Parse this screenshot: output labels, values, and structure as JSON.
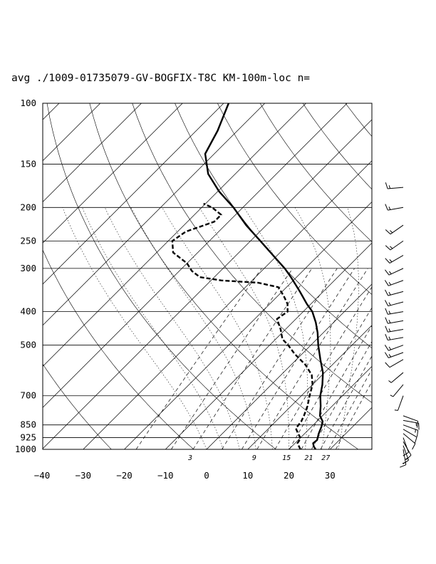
{
  "chart_data": {
    "type": "line",
    "title": "avg ./1009-01735079-GV-BOGFIX-T8C KM-100m-loc n=",
    "xlabel": "",
    "ylabel": "",
    "xlim": [
      -40,
      40
    ],
    "ylim": [
      1000,
      100
    ],
    "yscale": "log",
    "skew": "skew-T",
    "pressure_ticks": [
      {
        "p": 100,
        "label": "100"
      },
      {
        "p": 150,
        "label": "150"
      },
      {
        "p": 200,
        "label": "200"
      },
      {
        "p": 250,
        "label": "250"
      },
      {
        "p": 300,
        "label": "300"
      },
      {
        "p": 400,
        "label": "400"
      },
      {
        "p": 500,
        "label": "500"
      },
      {
        "p": 700,
        "label": "700"
      },
      {
        "p": 850,
        "label": "850"
      },
      {
        "p": 925,
        "label": "925"
      },
      {
        "p": 1000,
        "label": "1000"
      }
    ],
    "temperature_ticks": [
      {
        "t": -40,
        "label": "−40"
      },
      {
        "t": -30,
        "label": "−30"
      },
      {
        "t": -20,
        "label": "−20"
      },
      {
        "t": -10,
        "label": "−10"
      },
      {
        "t": 0,
        "label": "0"
      },
      {
        "t": 10,
        "label": "10"
      },
      {
        "t": 20,
        "label": "20"
      },
      {
        "t": 30,
        "label": "30"
      }
    ],
    "mixing_ratio_labels": [
      {
        "w": 3,
        "label": "3"
      },
      {
        "w": 9,
        "label": "9"
      },
      {
        "w": 15,
        "label": "15"
      },
      {
        "w": 21,
        "label": "21"
      },
      {
        "w": 27,
        "label": "27"
      }
    ],
    "grid": true,
    "series": [
      {
        "style": "solid",
        "points": [
          {
            "p": 1000,
            "t": 26.5
          },
          {
            "p": 980,
            "t": 25.3
          },
          {
            "p": 960,
            "t": 24.4
          },
          {
            "p": 940,
            "t": 24.6
          },
          {
            "p": 900,
            "t": 23.4
          },
          {
            "p": 860,
            "t": 22.4
          },
          {
            "p": 830,
            "t": 21.4
          },
          {
            "p": 800,
            "t": 19.4
          },
          {
            "p": 750,
            "t": 17.2
          },
          {
            "p": 700,
            "t": 14.6
          },
          {
            "p": 650,
            "t": 12.4
          },
          {
            "p": 600,
            "t": 9.6
          },
          {
            "p": 550,
            "t": 5.8
          },
          {
            "p": 500,
            "t": 1.8
          },
          {
            "p": 460,
            "t": -1.4
          },
          {
            "p": 430,
            "t": -4.3
          },
          {
            "p": 400,
            "t": -7.8
          },
          {
            "p": 380,
            "t": -11.0
          },
          {
            "p": 350,
            "t": -15.7
          },
          {
            "p": 320,
            "t": -21.0
          },
          {
            "p": 300,
            "t": -25.0
          },
          {
            "p": 280,
            "t": -29.8
          },
          {
            "p": 250,
            "t": -37.6
          },
          {
            "p": 225,
            "t": -44.9
          },
          {
            "p": 200,
            "t": -52.3
          },
          {
            "p": 180,
            "t": -59.6
          },
          {
            "p": 160,
            "t": -66.6
          },
          {
            "p": 140,
            "t": -72.2
          },
          {
            "p": 120,
            "t": -74.8
          },
          {
            "p": 100,
            "t": -78.8
          }
        ]
      },
      {
        "style": "dashed",
        "points": [
          {
            "p": 1000,
            "t": 22.8
          },
          {
            "p": 960,
            "t": 20.6
          },
          {
            "p": 930,
            "t": 20.2
          },
          {
            "p": 900,
            "t": 18.4
          },
          {
            "p": 870,
            "t": 16.6
          },
          {
            "p": 830,
            "t": 16.2
          },
          {
            "p": 800,
            "t": 15.5
          },
          {
            "p": 750,
            "t": 14.0
          },
          {
            "p": 700,
            "t": 12.0
          },
          {
            "p": 650,
            "t": 10.0
          },
          {
            "p": 610,
            "t": 7.5
          },
          {
            "p": 570,
            "t": 3.5
          },
          {
            "p": 530,
            "t": -1.8
          },
          {
            "p": 500,
            "t": -5.5
          },
          {
            "p": 480,
            "t": -8.4
          },
          {
            "p": 450,
            "t": -11.2
          },
          {
            "p": 420,
            "t": -14.6
          },
          {
            "p": 400,
            "t": -13.8
          },
          {
            "p": 380,
            "t": -15.7
          },
          {
            "p": 360,
            "t": -18.6
          },
          {
            "p": 340,
            "t": -22.0
          },
          {
            "p": 330,
            "t": -28.0
          },
          {
            "p": 325,
            "t": -37.5
          },
          {
            "p": 318,
            "t": -43.5
          },
          {
            "p": 305,
            "t": -47.0
          },
          {
            "p": 290,
            "t": -50.0
          },
          {
            "p": 270,
            "t": -56.0
          },
          {
            "p": 250,
            "t": -59.0
          },
          {
            "p": 235,
            "t": -58.0
          },
          {
            "p": 220,
            "t": -53.5
          },
          {
            "p": 210,
            "t": -53.5
          },
          {
            "p": 200,
            "t": -57.5
          },
          {
            "p": 195,
            "t": -60.5
          }
        ]
      }
    ],
    "wind_barbs": [
      {
        "p": 1000,
        "dir": 170,
        "speed": 15
      },
      {
        "p": 975,
        "dir": 160,
        "speed": 15
      },
      {
        "p": 950,
        "dir": 150,
        "speed": 10
      },
      {
        "p": 925,
        "dir": 160,
        "speed": 10
      },
      {
        "p": 900,
        "dir": 130,
        "speed": 10
      },
      {
        "p": 875,
        "dir": 120,
        "speed": 10
      },
      {
        "p": 850,
        "dir": 110,
        "speed": 15
      },
      {
        "p": 825,
        "dir": 100,
        "speed": 15
      },
      {
        "p": 800,
        "dir": 110,
        "speed": 10
      },
      {
        "p": 700,
        "dir": 200,
        "speed": 5
      },
      {
        "p": 650,
        "dir": 220,
        "speed": 5
      },
      {
        "p": 600,
        "dir": 230,
        "speed": 5
      },
      {
        "p": 550,
        "dir": 240,
        "speed": 10
      },
      {
        "p": 525,
        "dir": 250,
        "speed": 15
      },
      {
        "p": 500,
        "dir": 250,
        "speed": 15
      },
      {
        "p": 475,
        "dir": 260,
        "speed": 15
      },
      {
        "p": 450,
        "dir": 260,
        "speed": 15
      },
      {
        "p": 425,
        "dir": 260,
        "speed": 15
      },
      {
        "p": 400,
        "dir": 260,
        "speed": 15
      },
      {
        "p": 375,
        "dir": 255,
        "speed": 15
      },
      {
        "p": 350,
        "dir": 255,
        "speed": 15
      },
      {
        "p": 325,
        "dir": 250,
        "speed": 15
      },
      {
        "p": 300,
        "dir": 245,
        "speed": 15
      },
      {
        "p": 275,
        "dir": 240,
        "speed": 15
      },
      {
        "p": 250,
        "dir": 235,
        "speed": 15
      },
      {
        "p": 225,
        "dir": 235,
        "speed": 15
      },
      {
        "p": 200,
        "dir": 260,
        "speed": 15
      },
      {
        "p": 175,
        "dir": 265,
        "speed": 15
      }
    ]
  }
}
